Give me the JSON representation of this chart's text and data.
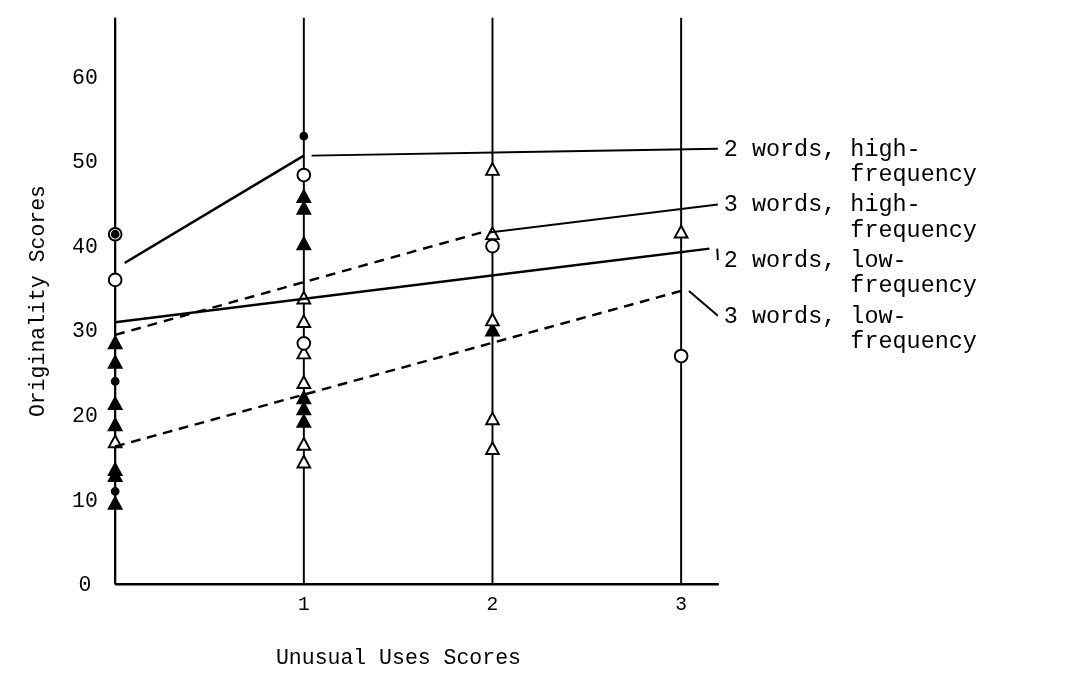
{
  "chart_data": {
    "type": "scatter",
    "xlabel": "Unusual Uses Scores",
    "ylabel": "Originality Scores",
    "xlim": [
      0,
      3.2
    ],
    "xticks": [
      1,
      2,
      3
    ],
    "ylim": [
      0,
      67
    ],
    "yticks": [
      0,
      10,
      20,
      30,
      40,
      50,
      60
    ],
    "grid": "x",
    "series": [
      {
        "marker": "triangle",
        "color": "#000000",
        "x": [
          0,
          0,
          0,
          0,
          0,
          0,
          0,
          1,
          1,
          1,
          1,
          1,
          1,
          2
        ],
        "values": [
          28.5,
          26.2,
          21.3,
          18.8,
          12.8,
          13.5,
          9.5,
          45.8,
          44.4,
          40.2,
          22,
          20.7,
          19.2,
          30
        ]
      },
      {
        "marker": "triangle",
        "color": "#ffffff",
        "x": [
          0,
          1,
          1,
          1,
          1,
          1,
          1,
          2,
          2,
          2,
          2,
          2,
          3
        ],
        "values": [
          16.8,
          33.8,
          31,
          27.3,
          23.8,
          16.5,
          14.4,
          49,
          41.4,
          31.2,
          19.5,
          16,
          41.6
        ]
      },
      {
        "marker": "circle",
        "color": "#ffffff",
        "x": [
          0,
          0,
          1,
          1,
          2,
          3
        ],
        "values": [
          41.4,
          36,
          48.4,
          28.5,
          40,
          27
        ]
      },
      {
        "marker": "circle",
        "color": "#000000",
        "x": [
          0,
          0,
          0,
          1
        ],
        "values": [
          41.4,
          24,
          11,
          53
        ]
      },
      {
        "type": "line",
        "line_style": "solid",
        "color": "#000000",
        "x": [
          0.05,
          1
        ],
        "values": [
          38,
          50.7
        ]
      },
      {
        "type": "line",
        "line_style": "dashed",
        "color": "#000000",
        "x": [
          0,
          1.94
        ],
        "values": [
          29.5,
          41.6
        ]
      },
      {
        "type": "line",
        "line_style": "solid",
        "color": "#000000",
        "x": [
          0,
          3.15
        ],
        "values": [
          31,
          39.7
        ]
      },
      {
        "type": "line",
        "line_style": "dashed",
        "color": "#000000",
        "x": [
          0,
          3
        ],
        "values": [
          16.3,
          34.7
        ]
      }
    ],
    "annotations": [
      {
        "text": "2 words, high-frequency",
        "x": 1,
        "y": 50.7
      },
      {
        "text": "3 words, high-frequency",
        "x": 1.94,
        "y": 41.6
      },
      {
        "text": "2 words, low-frequency",
        "x": 3.15,
        "y": 39.7
      },
      {
        "text": "3 words, low-frequency",
        "x": 3,
        "y": 34.7
      }
    ]
  }
}
